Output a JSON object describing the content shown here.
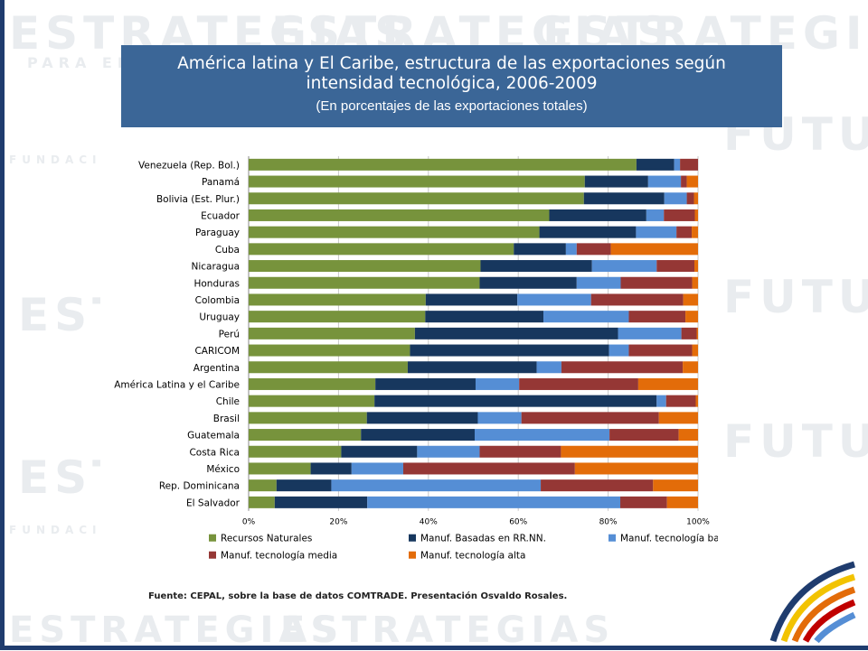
{
  "header": {
    "title": "América latina y El Caribe, estructura de las exportaciones según intensidad tecnológica, 2006-2009",
    "subtitle": "(En porcentajes de las exportaciones totales)"
  },
  "watermark": {
    "word1": "ESTRATEGIAS",
    "word2": "PARA EL",
    "word3": "FUTURO",
    "word4": "FUNDACION"
  },
  "source": "Fuente: CEPAL, sobre la base de datos COMTRADE. Presentación Osvaldo Rosales.",
  "chart_data": {
    "type": "bar",
    "orientation": "horizontal",
    "stacked": true,
    "categories": [
      "Venezuela (Rep. Bol.)",
      "Panamá",
      "Bolivia (Est. Plur.)",
      "Ecuador",
      "Paraguay",
      "Cuba",
      "Nicaragua",
      "Honduras",
      "Colombia",
      "Uruguay",
      "Perú",
      "CARICOM",
      "Argentina",
      "América Latina y el Caribe",
      "Chile",
      "Brasil",
      "Guatemala",
      "Costa Rica",
      "México",
      "Rep. Dominicana",
      "El Salvador"
    ],
    "series": [
      {
        "name": "Recursos Naturales",
        "color": "#77933c",
        "values": [
          86.3,
          74.8,
          74.6,
          66.9,
          64.7,
          59.0,
          51.6,
          51.4,
          39.4,
          39.3,
          37.0,
          35.9,
          35.4,
          28.2,
          28.0,
          26.3,
          25.0,
          20.6,
          13.8,
          6.2,
          5.8
        ]
      },
      {
        "name": "Manuf. Basadas en RR.NN.",
        "color": "#17375e",
        "values": [
          8.4,
          14.1,
          17.9,
          21.6,
          21.5,
          11.6,
          24.8,
          21.6,
          20.4,
          26.3,
          45.2,
          44.3,
          28.7,
          22.3,
          62.8,
          24.7,
          25.3,
          16.9,
          9.1,
          12.2,
          20.6
        ]
      },
      {
        "name": "Manuf.  tecnología baja",
        "color": "#558ed5",
        "values": [
          1.3,
          7.3,
          5.0,
          3.9,
          9.0,
          2.4,
          14.4,
          9.8,
          16.4,
          19.0,
          14.1,
          4.4,
          5.5,
          9.7,
          2.1,
          9.7,
          30.0,
          13.9,
          11.5,
          46.6,
          56.3
        ]
      },
      {
        "name": "Manuf.  tecnología media",
        "color": "#953735",
        "values": [
          4.0,
          1.3,
          1.6,
          6.9,
          3.4,
          7.6,
          8.4,
          15.9,
          20.5,
          12.6,
          3.4,
          14.1,
          27.0,
          26.5,
          6.6,
          30.6,
          15.4,
          18.1,
          38.2,
          25.0,
          10.4
        ]
      },
      {
        "name": "Manuf. tecnología alta",
        "color": "#e36c09",
        "values": [
          0.0,
          2.5,
          0.9,
          0.7,
          1.4,
          19.4,
          0.8,
          1.3,
          3.3,
          2.8,
          0.3,
          1.3,
          3.4,
          13.3,
          0.5,
          8.7,
          4.3,
          30.5,
          27.4,
          10.0,
          6.9
        ]
      }
    ],
    "x_ticks": [
      "0%",
      "20%",
      "40%",
      "60%",
      "80%",
      "100%"
    ],
    "xlim": [
      0,
      100
    ],
    "grid": true,
    "legend": "bottom"
  }
}
